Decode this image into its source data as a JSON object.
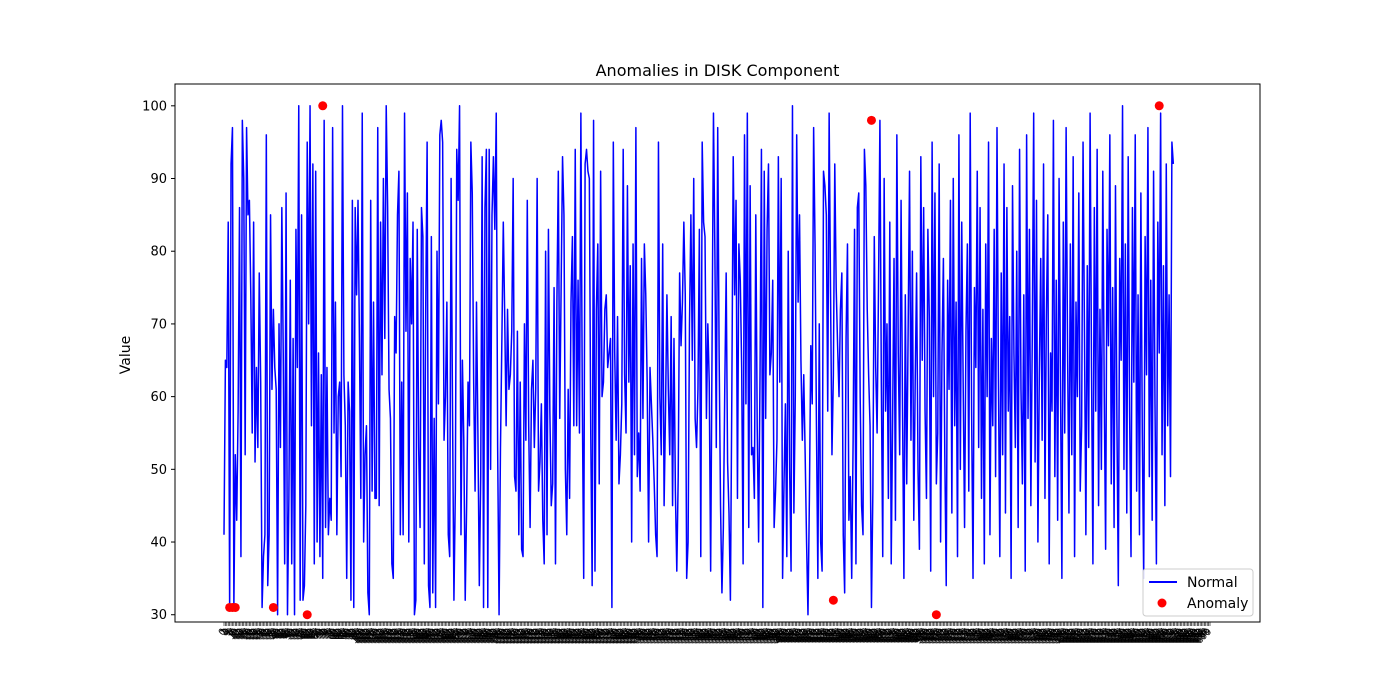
{
  "chart_data": {
    "type": "line",
    "title": "Anomalies in DISK Component",
    "xlabel": "",
    "ylabel": "Value",
    "ylim": [
      29,
      103
    ],
    "yticks": [
      30,
      40,
      50,
      60,
      70,
      80,
      90,
      100
    ],
    "grid": false,
    "legend": {
      "placement": "lower-right",
      "entries": [
        "Normal",
        "Anomaly"
      ]
    },
    "colors": {
      "normal": "#0000ff",
      "anomaly": "#ff0000"
    },
    "n_points": 700,
    "series": [
      {
        "name": "Normal",
        "kind": "line",
        "values": [
          41,
          65,
          64,
          84,
          31,
          92,
          97,
          31,
          52,
          43,
          58,
          86,
          38,
          98,
          90,
          52,
          97,
          85,
          87,
          74,
          55,
          84,
          51,
          64,
          53,
          77,
          62,
          31,
          38,
          41,
          96,
          34,
          41,
          85,
          61,
          72,
          64,
          61,
          30,
          70,
          53,
          86,
          66,
          37,
          88,
          30,
          46,
          76,
          37,
          68,
          30,
          83,
          64,
          100,
          32,
          85,
          32,
          34,
          45,
          95,
          70,
          100,
          56,
          92,
          37,
          91,
          40,
          66,
          38,
          63,
          35,
          98,
          42,
          64,
          41,
          46,
          43,
          97,
          55,
          73,
          41,
          60,
          62,
          49,
          100,
          63,
          56,
          35,
          62,
          58,
          32,
          87,
          31,
          86,
          74,
          87,
          68,
          46,
          99,
          40,
          52,
          56,
          33,
          30,
          87,
          47,
          73,
          46,
          46,
          97,
          45,
          84,
          63,
          90,
          68,
          100,
          86,
          61,
          57,
          37,
          35,
          71,
          66,
          85,
          91,
          41,
          62,
          41,
          99,
          69,
          88,
          40,
          79,
          70,
          84,
          30,
          32,
          83,
          53,
          42,
          86,
          82,
          37,
          72,
          95,
          34,
          31,
          82,
          33,
          57,
          31,
          80,
          59,
          96,
          98,
          95,
          54,
          60,
          73,
          41,
          38,
          90,
          58,
          32,
          47,
          94,
          87,
          100,
          41,
          65,
          54,
          32,
          45,
          62,
          56,
          95,
          88,
          62,
          47,
          73,
          55,
          34,
          49,
          93,
          31,
          86,
          94,
          31,
          94,
          50,
          85,
          93,
          83,
          99,
          53,
          30,
          53,
          68,
          84,
          71,
          56,
          72,
          61,
          63,
          69,
          90,
          49,
          47,
          69,
          41,
          62,
          39,
          38,
          70,
          54,
          87,
          56,
          42,
          61,
          65,
          53,
          61,
          90,
          47,
          51,
          59,
          43,
          37,
          80,
          41,
          83,
          58,
          45,
          48,
          75,
          37,
          73,
          91,
          57,
          75,
          93,
          85,
          50,
          41,
          61,
          46,
          73,
          82,
          56,
          94,
          56,
          76,
          55,
          99,
          60,
          35,
          92,
          94,
          91,
          90,
          55,
          34,
          98,
          36,
          72,
          81,
          48,
          91,
          60,
          62,
          72,
          74,
          64,
          66,
          68,
          31,
          95,
          66,
          54,
          71,
          48,
          52,
          59,
          94,
          63,
          55,
          89,
          62,
          78,
          40,
          81,
          52,
          97,
          49,
          55,
          47,
          79,
          57,
          81,
          74,
          62,
          40,
          64,
          59,
          54,
          48,
          41,
          38,
          95,
          60,
          52,
          81,
          45,
          58,
          74,
          61,
          52,
          71,
          45,
          68,
          47,
          36,
          49,
          77,
          67,
          73,
          84,
          74,
          35,
          40,
          70,
          85,
          65,
          90,
          57,
          53,
          61,
          83,
          38,
          95,
          84,
          82,
          57,
          70,
          62,
          36,
          67,
          99,
          80,
          53,
          97,
          66,
          45,
          33,
          42,
          61,
          77,
          51,
          44,
          32,
          60,
          93,
          74,
          87,
          46,
          81,
          76,
          64,
          37,
          96,
          59,
          99,
          42,
          89,
          52,
          53,
          46,
          85,
          56,
          40,
          63,
          94,
          31,
          91,
          57,
          83,
          92,
          63,
          66,
          76,
          42,
          47,
          54,
          93,
          62,
          90,
          35,
          48,
          59,
          38,
          80,
          50,
          36,
          100,
          44,
          60,
          96,
          73,
          85,
          65,
          54,
          63,
          52,
          40,
          30,
          46,
          67,
          59,
          97,
          81,
          56,
          35,
          70,
          40,
          36,
          91,
          89,
          85,
          58,
          99,
          74,
          52,
          63,
          92,
          75,
          67,
          60,
          72,
          77,
          41,
          33,
          68,
          81,
          43,
          49,
          35,
          54,
          83,
          37,
          86,
          88,
          60,
          45,
          41,
          94,
          89,
          72,
          63,
          56,
          31,
          47,
          82,
          64,
          55,
          75,
          98,
          62,
          38,
          90,
          58,
          70,
          46,
          84,
          37,
          57,
          79,
          43,
          96,
          66,
          52,
          87,
          59,
          35,
          74,
          48,
          69,
          91,
          54,
          80,
          43,
          62,
          77,
          50,
          39,
          93,
          65,
          86,
          58,
          46,
          83,
          71,
          36,
          95,
          60,
          88,
          48,
          55,
          92,
          40,
          66,
          79,
          52,
          34,
          76,
          61,
          87,
          44,
          90,
          56,
          73,
          38,
          96,
          50,
          84,
          62,
          42,
          69,
          81,
          47,
          99,
          58,
          35,
          75,
          64,
          91,
          53,
          86,
          46,
          72,
          37,
          81,
          60,
          95,
          41,
          68,
          56,
          83,
          49,
          97,
          63,
          38,
          77,
          52,
          92,
          44,
          86,
          58,
          71,
          35,
          89,
          66,
          53,
          80,
          42,
          94,
          61,
          48,
          74,
          36,
          96,
          57,
          83,
          45,
          68,
          99,
          51,
          87,
          40,
          63,
          79,
          54,
          92,
          46,
          71,
          85,
          37,
          66,
          58,
          98,
          49,
          76,
          43,
          90,
          62,
          35,
          84,
          55,
          97,
          67,
          44,
          81,
          52,
          93,
          38,
          73,
          60,
          88,
          47,
          56,
          95,
          69,
          41,
          78,
          53,
          99,
          64,
          37,
          86,
          58,
          94,
          45,
          72,
          50,
          91,
          61,
          39,
          83,
          67,
          96,
          48,
          75,
          42,
          89,
          57,
          34,
          79,
          65,
          100,
          50,
          81,
          44,
          93,
          58,
          38,
          86,
          62,
          96,
          47,
          74,
          41,
          88,
          55,
          35,
          82,
          63,
          97,
          49,
          76,
          43,
          91,
          59,
          37,
          84,
          66,
          99,
          52,
          78,
          45,
          92,
          56,
          74,
          49,
          95,
          92
        ]
      },
      {
        "name": "Anomaly",
        "kind": "scatter",
        "points": [
          {
            "x": 4,
            "y": 31
          },
          {
            "x": 6,
            "y": 31
          },
          {
            "x": 8,
            "y": 31
          },
          {
            "x": 35,
            "y": 31
          },
          {
            "x": 59,
            "y": 30
          },
          {
            "x": 70,
            "y": 100
          },
          {
            "x": 432,
            "y": 32
          },
          {
            "x": 459,
            "y": 98
          },
          {
            "x": 505,
            "y": 30
          },
          {
            "x": 663,
            "y": 100
          }
        ]
      }
    ]
  }
}
